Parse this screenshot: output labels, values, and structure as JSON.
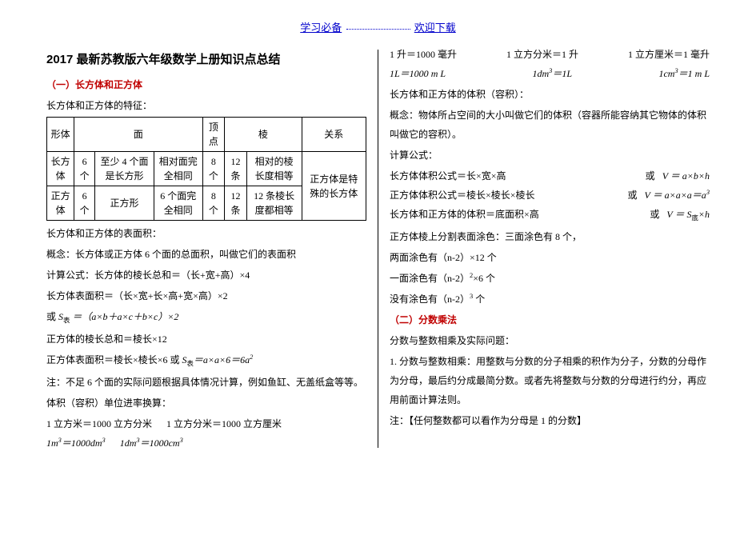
{
  "header": {
    "left": "学习必备",
    "right": "欢迎下载"
  },
  "title": "2017 最新苏教版六年级数学上册知识点总结",
  "sec1": {
    "heading": "（一）长方体和正方体",
    "intro": "长方体和正方体的特征：",
    "table": {
      "head": [
        "形体",
        "面",
        "顶点",
        "棱",
        "关系"
      ],
      "r1": [
        "长方体",
        "6 个",
        "至少 4 个面是长方形",
        "相对面完全相同",
        "8 个",
        "12条",
        "相对的棱长度相等",
        "正方体是特殊的长方体"
      ],
      "r2": [
        "正方体",
        "6 个",
        "正方形",
        "6 个面完全相同",
        "8 个",
        "12条",
        "12 条棱长度都相等"
      ]
    },
    "surface_title": "长方体和正方体的表面积：",
    "concept": "概念：长方体或正方体 6 个面的总面积，叫做它们的表面积",
    "formula1": "计算公式：长方体的棱长总和＝（长+宽+高）×4",
    "formula2": "长方体表面积＝（长×宽+长×高+宽×高）×2",
    "formula3_prefix": "或",
    "formula3_math": "S表 ＝（a×b＋a×c＋b×c）×2",
    "cube_edge": "正方体的棱长总和＝棱长×12",
    "cube_surface_prefix": "正方体表面积＝棱长×棱长×6 或",
    "cube_surface_math": "S表＝a×a×6＝6a²",
    "note1": "注：不足 6 个面的实际问题根据具体情况计算，例如鱼缸、无盖纸盒等等。",
    "vol_unit_title": "体积（容积）单位进率换算：",
    "vol1": "1 立方米＝1000 立方分米",
    "vol2": "1 立方分米＝1000 立方厘米",
    "vol_math1": "1m³＝1000dm³",
    "vol_math2": "1dm³＝1000cm³"
  },
  "right": {
    "row1a": "1 升＝1000 毫升",
    "row1b": "1 立方分米＝1 升",
    "row1c": "1 立方厘米＝1 毫升",
    "row2a": "1L＝1000 m L",
    "row2b": "1dm³＝1L",
    "row2c": "1cm³＝1 m L",
    "vol_title": "长方体和正方体的体积（容积）：",
    "vol_concept": "概念：物体所占空间的大小叫做它们的体积（容器所能容纳其它物体的体积叫做它的容积）。",
    "calc_title": "计算公式：",
    "cuboid_vol": "长方体体积公式＝长×宽×高",
    "or": "或",
    "cuboid_math": "V ＝ a×b×h",
    "cube_vol": "正方体体积公式＝棱长×棱长×棱长",
    "cube_math": "V ＝ a×a×a＝a³",
    "common": "长方体和正方体的体积＝底面积×高",
    "common_math": "V ＝ S底×h",
    "paint_title": "正方体棱上分割表面涂色：三面涂色有 8 个，",
    "paint2": "两面涂色有（n-2）×12 个",
    "paint3": "一面涂色有（n-2）²×6 个",
    "paint4": "没有涂色有（n-2）³ 个",
    "sec2": "（二）分数乘法",
    "frac_title": "分数与整数相乘及实际问题：",
    "frac_rule": "1. 分数与整数相乘：用整数与分数的分子相乘的积作为分子，分数的分母作为分母，最后约分成最简分数。或者先将整数与分数的分母进行约分，再应用前面计算法则。",
    "frac_note": "注：【任何整数都可以看作为分母是 1 的分数】"
  }
}
